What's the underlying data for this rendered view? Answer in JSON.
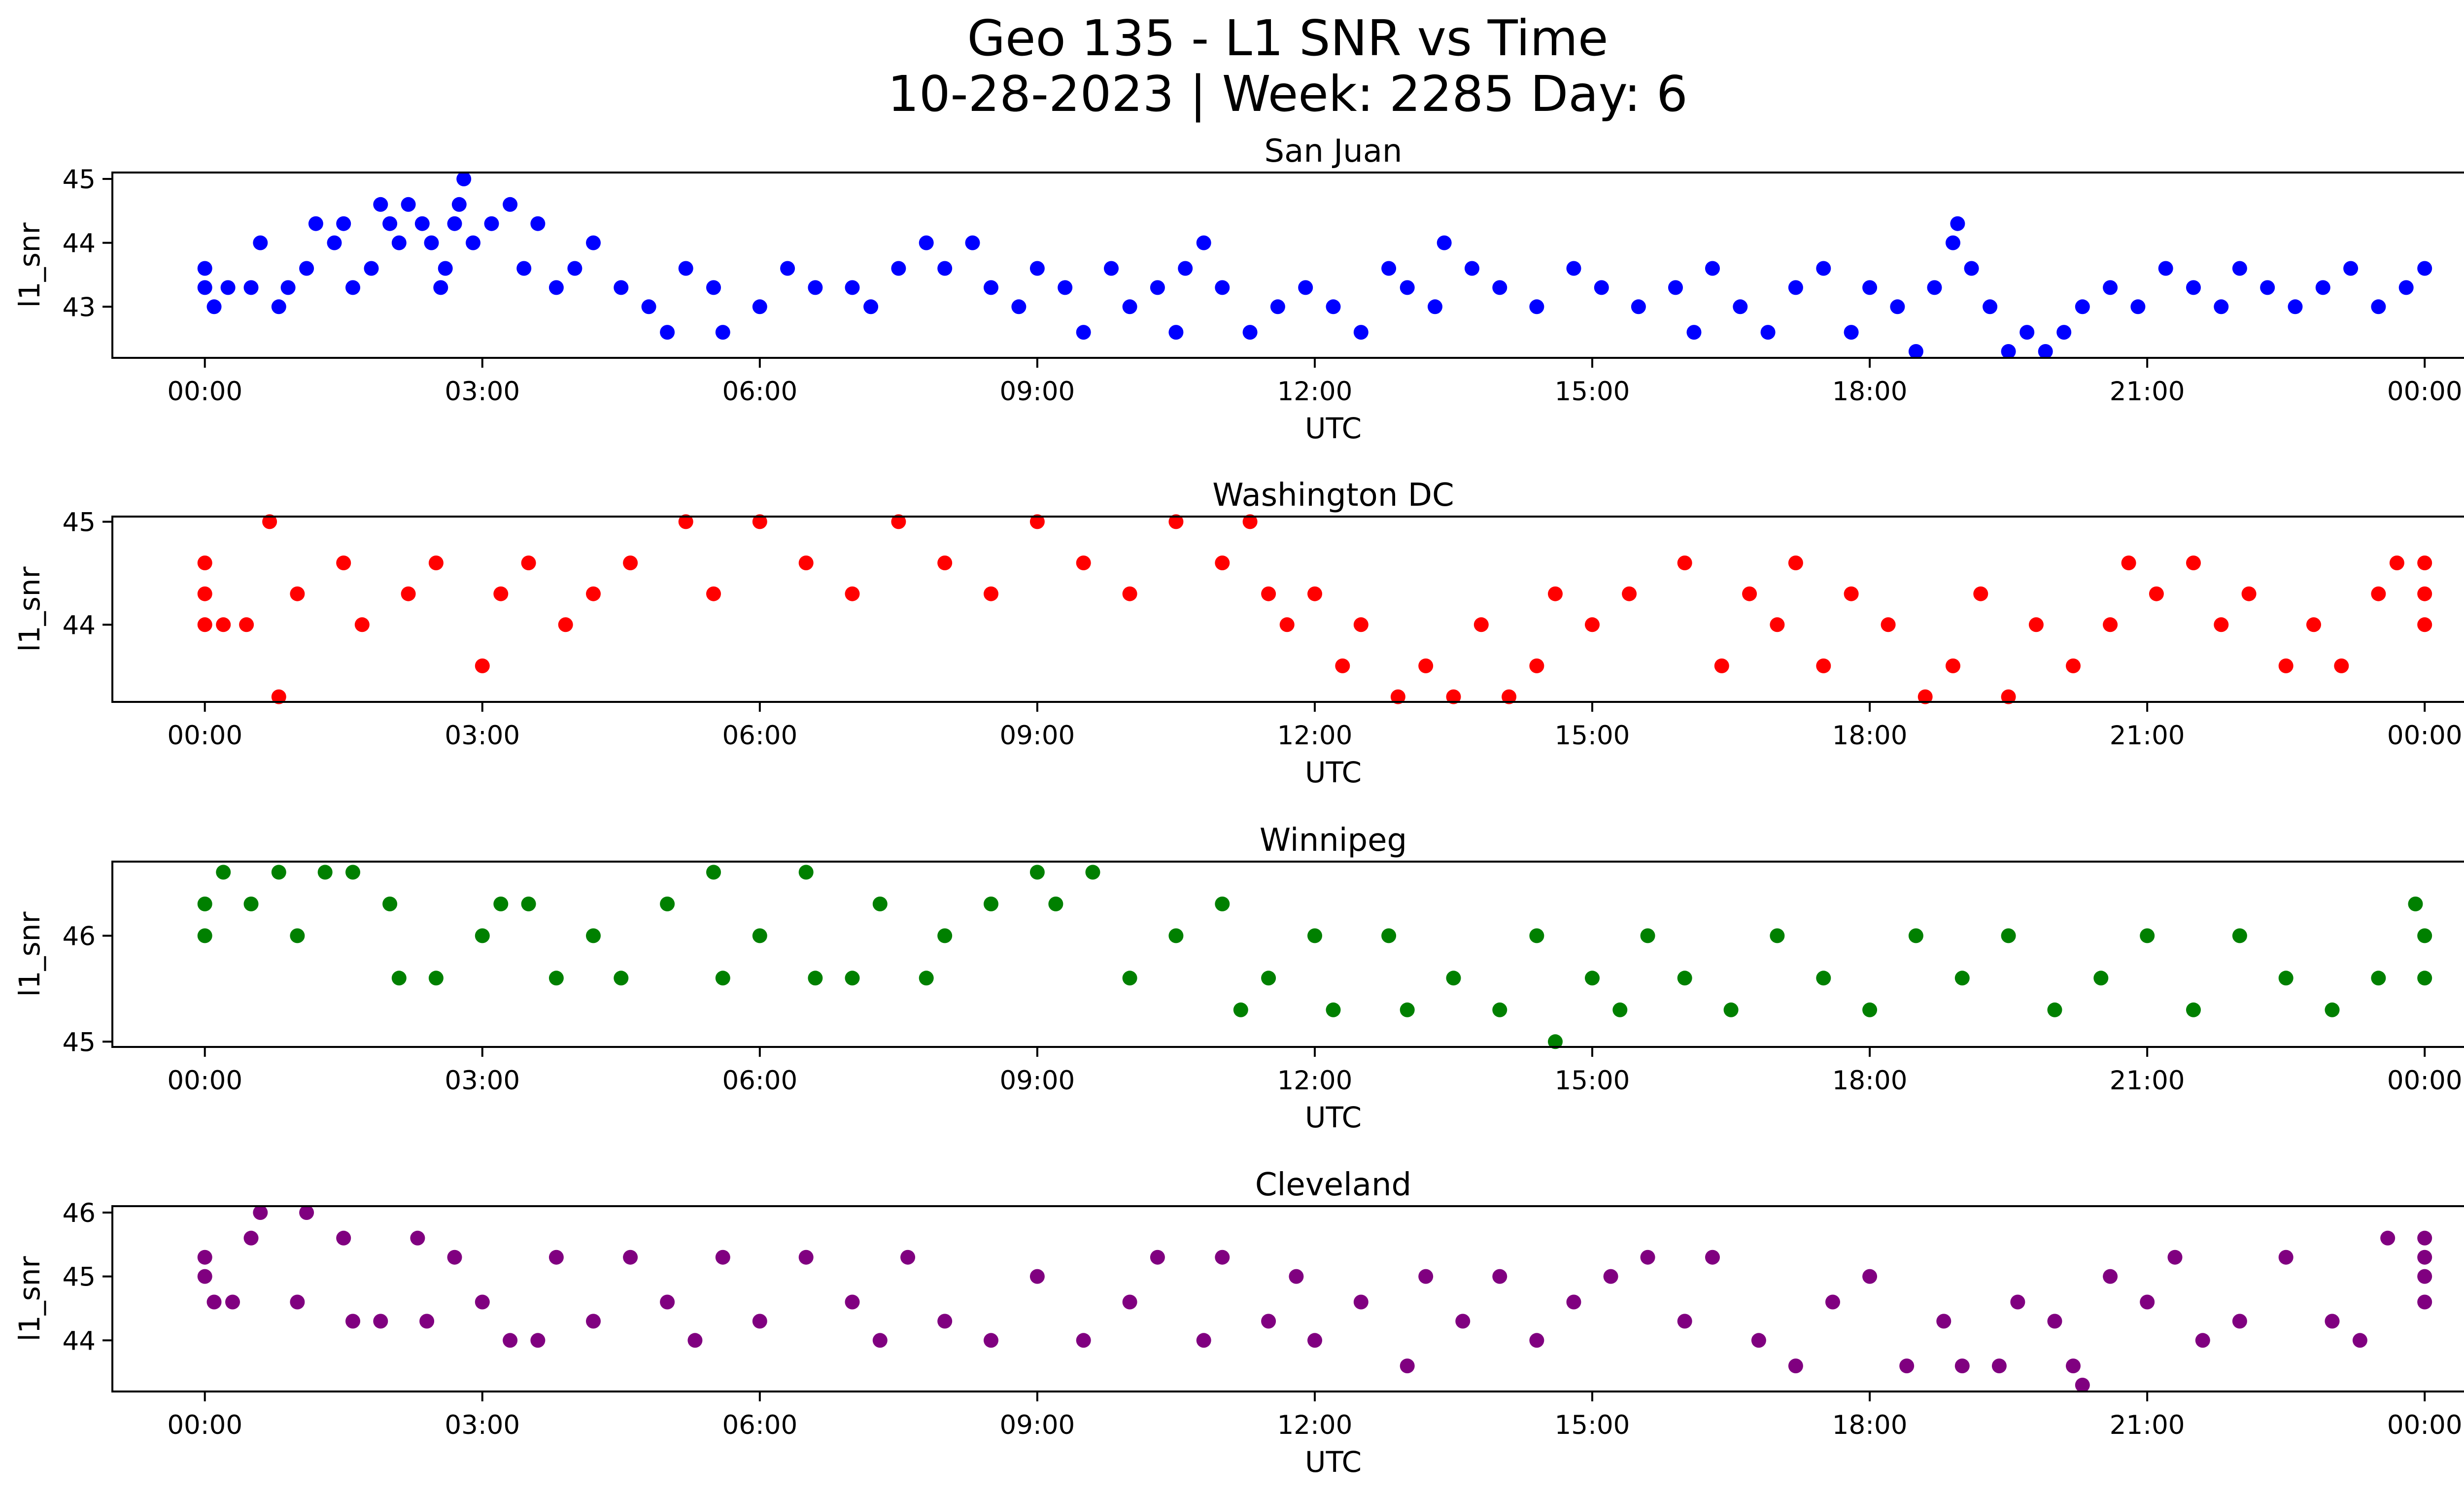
{
  "figure": {
    "title_line1": "Geo 135 - L1 SNR vs Time",
    "title_line2": "10-28-2023 | Week: 2285 Day: 6"
  },
  "chart_data": [
    {
      "type": "scatter",
      "title": "San Juan",
      "xlabel": "UTC",
      "ylabel": "l1_snr",
      "color": "#0000ff",
      "xlim": [
        "23:00",
        "00:25 (+1 day)"
      ],
      "ylim": [
        42.2,
        45.1
      ],
      "x_ticks": [
        "00:00",
        "03:00",
        "06:00",
        "09:00",
        "12:00",
        "15:00",
        "18:00",
        "21:00",
        "00:00"
      ],
      "y_ticks": [
        43,
        44,
        45
      ],
      "points": [
        [
          0.0,
          43.3
        ],
        [
          0.0,
          43.6
        ],
        [
          0.1,
          43.0
        ],
        [
          0.25,
          43.3
        ],
        [
          0.5,
          43.3
        ],
        [
          0.6,
          44.0
        ],
        [
          0.8,
          43.0
        ],
        [
          0.9,
          43.3
        ],
        [
          1.1,
          43.6
        ],
        [
          1.2,
          44.3
        ],
        [
          1.4,
          44.0
        ],
        [
          1.5,
          44.3
        ],
        [
          1.6,
          43.3
        ],
        [
          1.8,
          43.6
        ],
        [
          1.9,
          44.6
        ],
        [
          2.0,
          44.3
        ],
        [
          2.1,
          44.0
        ],
        [
          2.2,
          44.6
        ],
        [
          2.35,
          44.3
        ],
        [
          2.45,
          44.0
        ],
        [
          2.55,
          43.3
        ],
        [
          2.6,
          43.6
        ],
        [
          2.7,
          44.3
        ],
        [
          2.75,
          44.6
        ],
        [
          2.8,
          45.0
        ],
        [
          2.9,
          44.0
        ],
        [
          3.1,
          44.3
        ],
        [
          3.3,
          44.6
        ],
        [
          3.45,
          43.6
        ],
        [
          3.6,
          44.3
        ],
        [
          3.8,
          43.3
        ],
        [
          4.0,
          43.6
        ],
        [
          4.2,
          44.0
        ],
        [
          4.5,
          43.3
        ],
        [
          4.8,
          43.0
        ],
        [
          5.0,
          42.6
        ],
        [
          5.2,
          43.6
        ],
        [
          5.5,
          43.3
        ],
        [
          5.6,
          42.6
        ],
        [
          6.0,
          43.0
        ],
        [
          6.3,
          43.6
        ],
        [
          6.6,
          43.3
        ],
        [
          7.0,
          43.3
        ],
        [
          7.2,
          43.0
        ],
        [
          7.5,
          43.6
        ],
        [
          7.8,
          44.0
        ],
        [
          8.0,
          43.6
        ],
        [
          8.3,
          44.0
        ],
        [
          8.5,
          43.3
        ],
        [
          8.8,
          43.0
        ],
        [
          9.0,
          43.6
        ],
        [
          9.3,
          43.3
        ],
        [
          9.5,
          42.6
        ],
        [
          9.8,
          43.6
        ],
        [
          10.0,
          43.0
        ],
        [
          10.3,
          43.3
        ],
        [
          10.5,
          42.6
        ],
        [
          10.6,
          43.6
        ],
        [
          10.8,
          44.0
        ],
        [
          11.0,
          43.3
        ],
        [
          11.3,
          42.6
        ],
        [
          11.6,
          43.0
        ],
        [
          11.9,
          43.3
        ],
        [
          12.2,
          43.0
        ],
        [
          12.5,
          42.6
        ],
        [
          12.8,
          43.6
        ],
        [
          13.0,
          43.3
        ],
        [
          13.3,
          43.0
        ],
        [
          13.4,
          44.0
        ],
        [
          13.7,
          43.6
        ],
        [
          14.0,
          43.3
        ],
        [
          14.4,
          43.0
        ],
        [
          14.8,
          43.6
        ],
        [
          15.1,
          43.3
        ],
        [
          15.5,
          43.0
        ],
        [
          15.9,
          43.3
        ],
        [
          16.1,
          42.6
        ],
        [
          16.3,
          43.6
        ],
        [
          16.6,
          43.0
        ],
        [
          16.9,
          42.6
        ],
        [
          17.2,
          43.3
        ],
        [
          17.5,
          43.6
        ],
        [
          17.8,
          42.6
        ],
        [
          18.0,
          43.3
        ],
        [
          18.3,
          43.0
        ],
        [
          18.5,
          42.3
        ],
        [
          18.7,
          43.3
        ],
        [
          18.9,
          44.0
        ],
        [
          18.95,
          44.3
        ],
        [
          19.1,
          43.6
        ],
        [
          19.3,
          43.0
        ],
        [
          19.5,
          42.3
        ],
        [
          19.7,
          42.6
        ],
        [
          19.9,
          42.3
        ],
        [
          20.1,
          42.6
        ],
        [
          20.3,
          43.0
        ],
        [
          20.6,
          43.3
        ],
        [
          20.9,
          43.0
        ],
        [
          21.2,
          43.6
        ],
        [
          21.5,
          43.3
        ],
        [
          21.8,
          43.0
        ],
        [
          22.0,
          43.6
        ],
        [
          22.3,
          43.3
        ],
        [
          22.6,
          43.0
        ],
        [
          22.9,
          43.3
        ],
        [
          23.2,
          43.6
        ],
        [
          23.5,
          43.0
        ],
        [
          23.8,
          43.3
        ],
        [
          24.0,
          43.6
        ]
      ]
    },
    {
      "type": "scatter",
      "title": "Washington DC",
      "xlabel": "UTC",
      "ylabel": "l1_snr",
      "color": "#ff0000",
      "xlim": [
        "23:00",
        "00:25 (+1 day)"
      ],
      "ylim": [
        43.25,
        45.05
      ],
      "x_ticks": [
        "00:00",
        "03:00",
        "06:00",
        "09:00",
        "12:00",
        "15:00",
        "18:00",
        "21:00",
        "00:00"
      ],
      "y_ticks": [
        44,
        45
      ],
      "points": [
        [
          0.0,
          44.0
        ],
        [
          0.0,
          44.3
        ],
        [
          0.0,
          44.6
        ],
        [
          0.2,
          44.0
        ],
        [
          0.45,
          44.0
        ],
        [
          0.7,
          45.0
        ],
        [
          0.8,
          43.3
        ],
        [
          1.0,
          44.3
        ],
        [
          1.5,
          44.6
        ],
        [
          1.7,
          44.0
        ],
        [
          2.2,
          44.3
        ],
        [
          2.5,
          44.6
        ],
        [
          3.0,
          43.6
        ],
        [
          3.2,
          44.3
        ],
        [
          3.5,
          44.6
        ],
        [
          3.9,
          44.0
        ],
        [
          4.2,
          44.3
        ],
        [
          4.6,
          44.6
        ],
        [
          5.2,
          45.0
        ],
        [
          5.5,
          44.3
        ],
        [
          6.0,
          45.0
        ],
        [
          6.5,
          44.6
        ],
        [
          7.0,
          44.3
        ],
        [
          7.5,
          45.0
        ],
        [
          8.0,
          44.6
        ],
        [
          8.5,
          44.3
        ],
        [
          9.0,
          45.0
        ],
        [
          9.5,
          44.6
        ],
        [
          10.0,
          44.3
        ],
        [
          10.5,
          45.0
        ],
        [
          11.0,
          44.6
        ],
        [
          11.3,
          45.0
        ],
        [
          11.5,
          44.3
        ],
        [
          11.7,
          44.0
        ],
        [
          12.0,
          44.3
        ],
        [
          12.3,
          43.6
        ],
        [
          12.5,
          44.0
        ],
        [
          12.9,
          43.3
        ],
        [
          13.2,
          43.6
        ],
        [
          13.5,
          43.3
        ],
        [
          13.8,
          44.0
        ],
        [
          14.1,
          43.3
        ],
        [
          14.4,
          43.6
        ],
        [
          14.6,
          44.3
        ],
        [
          15.0,
          44.0
        ],
        [
          15.4,
          44.3
        ],
        [
          16.0,
          44.6
        ],
        [
          16.4,
          43.6
        ],
        [
          16.7,
          44.3
        ],
        [
          17.0,
          44.0
        ],
        [
          17.2,
          44.6
        ],
        [
          17.5,
          43.6
        ],
        [
          17.8,
          44.3
        ],
        [
          18.2,
          44.0
        ],
        [
          18.6,
          43.3
        ],
        [
          18.9,
          43.6
        ],
        [
          19.2,
          44.3
        ],
        [
          19.5,
          43.3
        ],
        [
          19.8,
          44.0
        ],
        [
          20.2,
          43.6
        ],
        [
          20.6,
          44.0
        ],
        [
          20.8,
          44.6
        ],
        [
          21.1,
          44.3
        ],
        [
          21.5,
          44.6
        ],
        [
          21.8,
          44.0
        ],
        [
          22.1,
          44.3
        ],
        [
          22.5,
          43.6
        ],
        [
          22.8,
          44.0
        ],
        [
          23.1,
          43.6
        ],
        [
          23.5,
          44.3
        ],
        [
          23.7,
          44.6
        ],
        [
          24.0,
          44.0
        ],
        [
          24.0,
          44.3
        ],
        [
          24.0,
          44.6
        ]
      ]
    },
    {
      "type": "scatter",
      "title": "Winnipeg",
      "xlabel": "UTC",
      "ylabel": "l1_snr",
      "color": "#008000",
      "xlim": [
        "23:00",
        "00:25 (+1 day)"
      ],
      "ylim": [
        44.95,
        46.7
      ],
      "x_ticks": [
        "00:00",
        "03:00",
        "06:00",
        "09:00",
        "12:00",
        "15:00",
        "18:00",
        "21:00",
        "00:00"
      ],
      "y_ticks": [
        45,
        46
      ],
      "points": [
        [
          0.0,
          46.0
        ],
        [
          0.0,
          46.3
        ],
        [
          0.2,
          46.6
        ],
        [
          0.5,
          46.3
        ],
        [
          0.8,
          46.6
        ],
        [
          1.0,
          46.0
        ],
        [
          1.3,
          46.6
        ],
        [
          1.6,
          46.6
        ],
        [
          2.0,
          46.3
        ],
        [
          2.1,
          45.6
        ],
        [
          2.5,
          45.6
        ],
        [
          3.0,
          46.0
        ],
        [
          3.2,
          46.3
        ],
        [
          3.5,
          46.3
        ],
        [
          3.8,
          45.6
        ],
        [
          4.2,
          46.0
        ],
        [
          4.5,
          45.6
        ],
        [
          5.0,
          46.3
        ],
        [
          5.5,
          46.6
        ],
        [
          5.6,
          45.6
        ],
        [
          6.0,
          46.0
        ],
        [
          6.5,
          46.6
        ],
        [
          6.6,
          45.6
        ],
        [
          7.0,
          45.6
        ],
        [
          7.3,
          46.3
        ],
        [
          7.8,
          45.6
        ],
        [
          8.0,
          46.0
        ],
        [
          8.5,
          46.3
        ],
        [
          9.0,
          46.6
        ],
        [
          9.2,
          46.3
        ],
        [
          9.6,
          46.6
        ],
        [
          10.0,
          45.6
        ],
        [
          10.5,
          46.0
        ],
        [
          11.0,
          46.3
        ],
        [
          11.2,
          45.3
        ],
        [
          11.5,
          45.6
        ],
        [
          12.0,
          46.0
        ],
        [
          12.2,
          45.3
        ],
        [
          12.8,
          46.0
        ],
        [
          13.0,
          45.3
        ],
        [
          13.5,
          45.6
        ],
        [
          14.0,
          45.3
        ],
        [
          14.4,
          46.0
        ],
        [
          14.6,
          45.0
        ],
        [
          15.0,
          45.6
        ],
        [
          15.3,
          45.3
        ],
        [
          15.6,
          46.0
        ],
        [
          16.0,
          45.6
        ],
        [
          16.5,
          45.3
        ],
        [
          17.0,
          46.0
        ],
        [
          17.5,
          45.6
        ],
        [
          18.0,
          45.3
        ],
        [
          18.5,
          46.0
        ],
        [
          19.0,
          45.6
        ],
        [
          19.5,
          46.0
        ],
        [
          20.0,
          45.3
        ],
        [
          20.5,
          45.6
        ],
        [
          21.0,
          46.0
        ],
        [
          21.5,
          45.3
        ],
        [
          22.0,
          46.0
        ],
        [
          22.5,
          45.6
        ],
        [
          23.0,
          45.3
        ],
        [
          23.5,
          45.6
        ],
        [
          23.9,
          46.3
        ],
        [
          24.0,
          46.0
        ],
        [
          24.0,
          45.6
        ]
      ]
    },
    {
      "type": "scatter",
      "title": "Cleveland",
      "xlabel": "UTC",
      "ylabel": "l1_snr",
      "color": "#800080",
      "xlim": [
        "23:00",
        "00:25 (+1 day)"
      ],
      "ylim": [
        43.2,
        46.1
      ],
      "x_ticks": [
        "00:00",
        "03:00",
        "06:00",
        "09:00",
        "12:00",
        "15:00",
        "18:00",
        "21:00",
        "00:00"
      ],
      "y_ticks": [
        44,
        45,
        46
      ],
      "points": [
        [
          0.0,
          45.0
        ],
        [
          0.0,
          45.3
        ],
        [
          0.1,
          44.6
        ],
        [
          0.3,
          44.6
        ],
        [
          0.5,
          45.6
        ],
        [
          0.6,
          46.0
        ],
        [
          1.0,
          44.6
        ],
        [
          1.1,
          46.0
        ],
        [
          1.5,
          45.6
        ],
        [
          1.6,
          44.3
        ],
        [
          1.9,
          44.3
        ],
        [
          2.3,
          45.6
        ],
        [
          2.4,
          44.3
        ],
        [
          2.7,
          45.3
        ],
        [
          3.0,
          44.6
        ],
        [
          3.3,
          44.0
        ],
        [
          3.6,
          44.0
        ],
        [
          3.8,
          45.3
        ],
        [
          4.2,
          44.3
        ],
        [
          4.6,
          45.3
        ],
        [
          5.0,
          44.6
        ],
        [
          5.3,
          44.0
        ],
        [
          5.6,
          45.3
        ],
        [
          6.0,
          44.3
        ],
        [
          6.5,
          45.3
        ],
        [
          7.0,
          44.6
        ],
        [
          7.3,
          44.0
        ],
        [
          7.6,
          45.3
        ],
        [
          8.0,
          44.3
        ],
        [
          8.5,
          44.0
        ],
        [
          9.0,
          45.0
        ],
        [
          9.5,
          44.0
        ],
        [
          10.0,
          44.6
        ],
        [
          10.3,
          45.3
        ],
        [
          10.8,
          44.0
        ],
        [
          11.0,
          45.3
        ],
        [
          11.5,
          44.3
        ],
        [
          11.8,
          45.0
        ],
        [
          12.0,
          44.0
        ],
        [
          12.5,
          44.6
        ],
        [
          13.0,
          43.6
        ],
        [
          13.2,
          45.0
        ],
        [
          13.6,
          44.3
        ],
        [
          14.0,
          45.0
        ],
        [
          14.4,
          44.0
        ],
        [
          14.8,
          44.6
        ],
        [
          15.2,
          45.0
        ],
        [
          15.6,
          45.3
        ],
        [
          16.0,
          44.3
        ],
        [
          16.3,
          45.3
        ],
        [
          16.8,
          44.0
        ],
        [
          17.2,
          43.6
        ],
        [
          17.6,
          44.6
        ],
        [
          18.0,
          45.0
        ],
        [
          18.4,
          43.6
        ],
        [
          18.8,
          44.3
        ],
        [
          19.0,
          43.6
        ],
        [
          19.4,
          43.6
        ],
        [
          19.6,
          44.6
        ],
        [
          20.0,
          44.3
        ],
        [
          20.2,
          43.6
        ],
        [
          20.3,
          43.3
        ],
        [
          20.6,
          45.0
        ],
        [
          21.0,
          44.6
        ],
        [
          21.3,
          45.3
        ],
        [
          21.6,
          44.0
        ],
        [
          22.0,
          44.3
        ],
        [
          22.5,
          45.3
        ],
        [
          23.0,
          44.3
        ],
        [
          23.3,
          44.0
        ],
        [
          23.6,
          45.6
        ],
        [
          24.0,
          44.6
        ],
        [
          24.0,
          45.0
        ],
        [
          24.0,
          45.3
        ],
        [
          24.0,
          45.6
        ]
      ]
    }
  ]
}
